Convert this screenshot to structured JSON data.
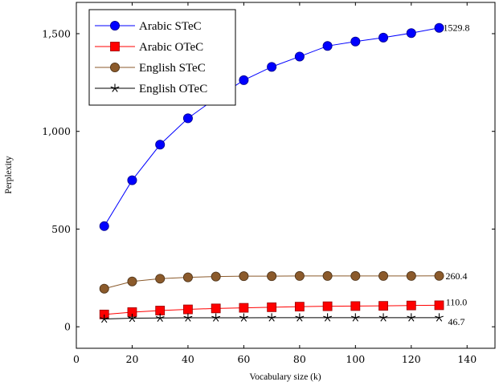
{
  "chart_data": {
    "type": "line",
    "xlabel": "Vocabulary size (k)",
    "ylabel": "Perplexity",
    "xlim": [
      0,
      150
    ],
    "ylim": [
      -110,
      1660
    ],
    "xticks": [
      0,
      20,
      40,
      60,
      80,
      100,
      120,
      140
    ],
    "yticks": [
      0,
      500,
      1000,
      1500
    ],
    "ytick_labels": [
      "0",
      "500",
      "1,000",
      "1,500"
    ],
    "grid": false,
    "legend_position": "top-left",
    "x": [
      10,
      20,
      30,
      40,
      50,
      60,
      70,
      80,
      90,
      100,
      110,
      120,
      130
    ],
    "series": [
      {
        "name": "Arabic STeC",
        "color": "#0000ff",
        "marker": "circle",
        "values": [
          515,
          750,
          932,
          1067,
          1170,
          1262,
          1330,
          1383,
          1437,
          1460,
          1480,
          1503,
          1529.8
        ],
        "end_label": "1529.8"
      },
      {
        "name": "Arabic OTeC",
        "color": "#ff0000",
        "marker": "square",
        "values": [
          63,
          75,
          83,
          89,
          94,
          97,
          100,
          103,
          105,
          106,
          107,
          109,
          110.0
        ],
        "end_label": "110.0"
      },
      {
        "name": "English STeC",
        "color": "#8b5a2b",
        "marker": "circle",
        "values": [
          195,
          232,
          246,
          253,
          257,
          259,
          259,
          260,
          260,
          260,
          260,
          260,
          260.4
        ],
        "end_label": "260.4"
      },
      {
        "name": "English OTeC",
        "color": "#000000",
        "marker": "star",
        "values": [
          40,
          44,
          45,
          46,
          46,
          46,
          46.5,
          46.5,
          46.5,
          46.7,
          46.7,
          46.7,
          46.7
        ],
        "end_label": "46.7"
      }
    ]
  }
}
